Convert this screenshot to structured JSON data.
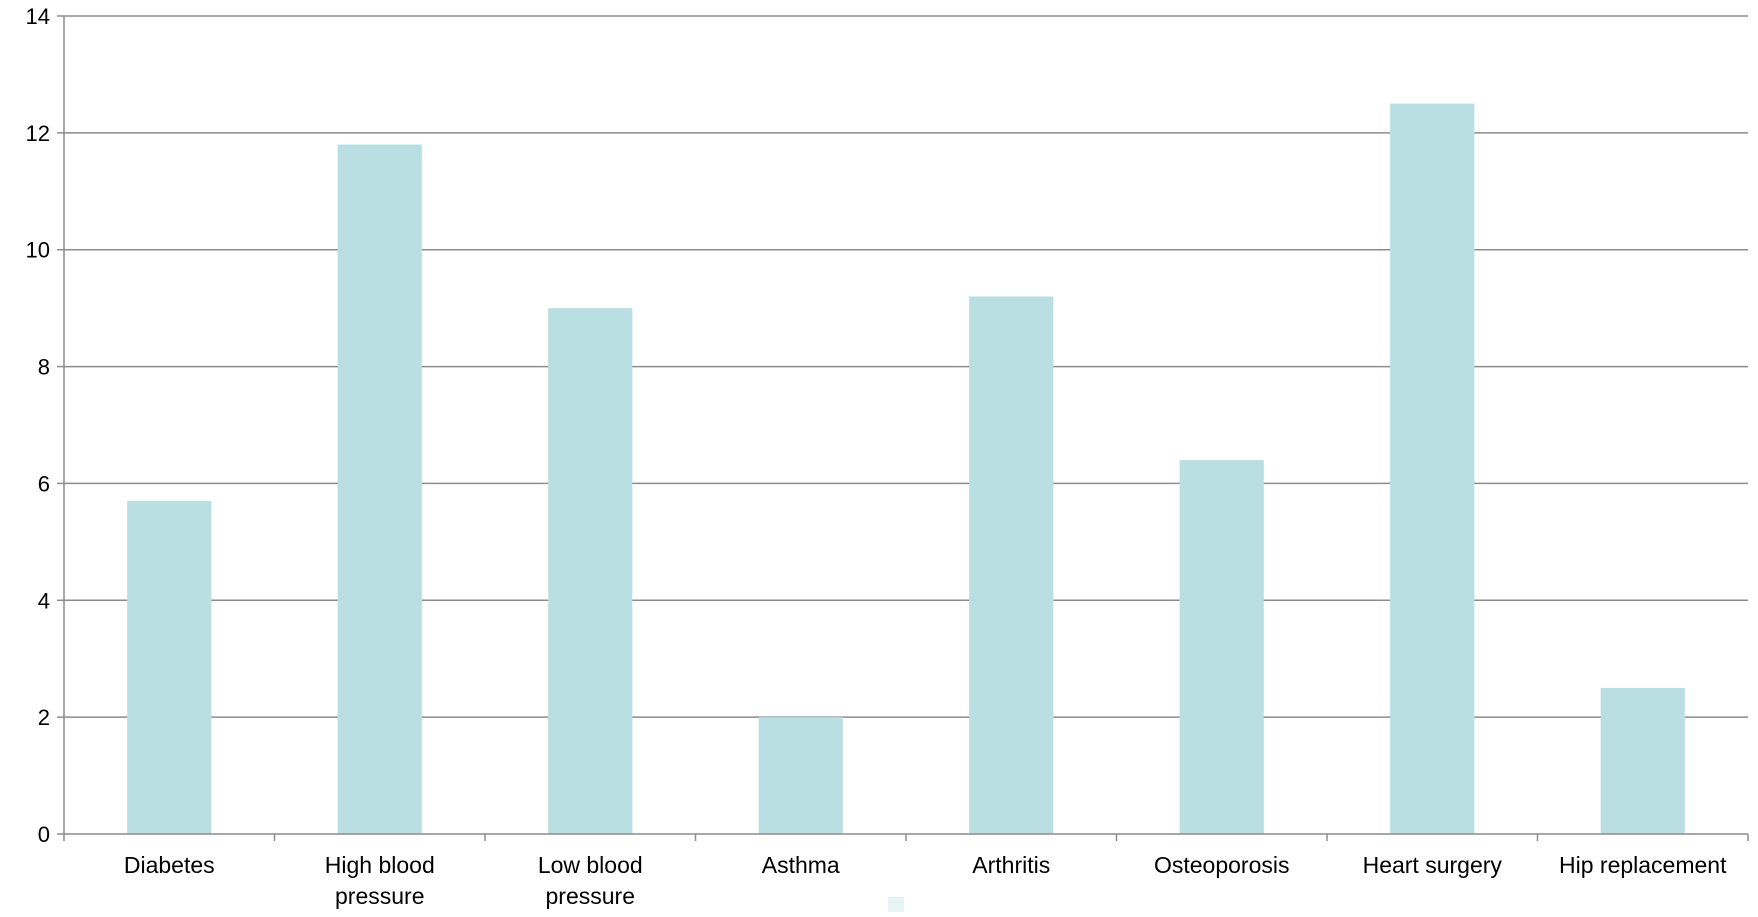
{
  "chart_data": {
    "type": "bar",
    "categories": [
      [
        "Diabetes"
      ],
      [
        "High blood",
        "pressure"
      ],
      [
        "Low blood",
        "pressure"
      ],
      [
        "Asthma"
      ],
      [
        "Arthritis"
      ],
      [
        "Osteoporosis"
      ],
      [
        "Heart surgery"
      ],
      [
        "Hip replacement"
      ]
    ],
    "series": [
      {
        "values": [
          5.7,
          11.8,
          9.0,
          2.0,
          9.2,
          6.4,
          12.5,
          2.5
        ],
        "color": "#badfe3"
      }
    ],
    "ylim": [
      0,
      14
    ],
    "yticks": [
      0,
      2,
      4,
      6,
      8,
      10,
      12,
      14
    ],
    "grid": true,
    "legend": "bottom-center",
    "colors": {
      "bar": "#badfe3",
      "gridline": "#8c8c8c",
      "axis": "#8c8c8c",
      "legend_swatch": "#e7f4f6"
    }
  }
}
